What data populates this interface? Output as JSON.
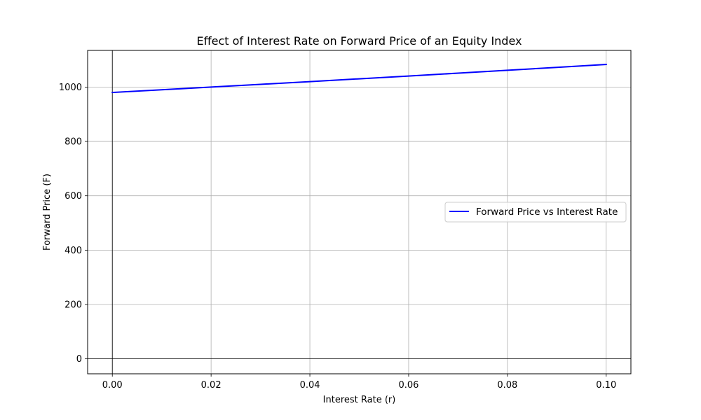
{
  "chart_data": {
    "type": "line",
    "title": "Effect of Interest Rate on Forward Price of an Equity Index",
    "xlabel": "Interest Rate (r)",
    "ylabel": "Forward Price (F)",
    "xlim": [
      -0.005,
      0.105
    ],
    "ylim": [
      -55,
      1135
    ],
    "xticks": [
      0.0,
      0.02,
      0.04,
      0.06,
      0.08,
      0.1
    ],
    "xtick_labels": [
      "0.00",
      "0.02",
      "0.04",
      "0.06",
      "0.08",
      "0.10"
    ],
    "yticks": [
      0,
      200,
      400,
      600,
      800,
      1000
    ],
    "ytick_labels": [
      "0",
      "200",
      "400",
      "600",
      "800",
      "1000"
    ],
    "grid": true,
    "reference_lines": {
      "horizontal": 0,
      "vertical": 0
    },
    "legend_position": "center-right",
    "series": [
      {
        "name": "Forward Price vs Interest Rate",
        "color": "#0000ff",
        "x": [
          0.0,
          0.01,
          0.02,
          0.03,
          0.04,
          0.05,
          0.06,
          0.07,
          0.08,
          0.09,
          0.1
        ],
        "y": [
          980.2,
          990.1,
          1000.0,
          1010.1,
          1020.2,
          1030.5,
          1040.8,
          1051.3,
          1061.8,
          1072.5,
          1083.3
        ]
      }
    ]
  }
}
